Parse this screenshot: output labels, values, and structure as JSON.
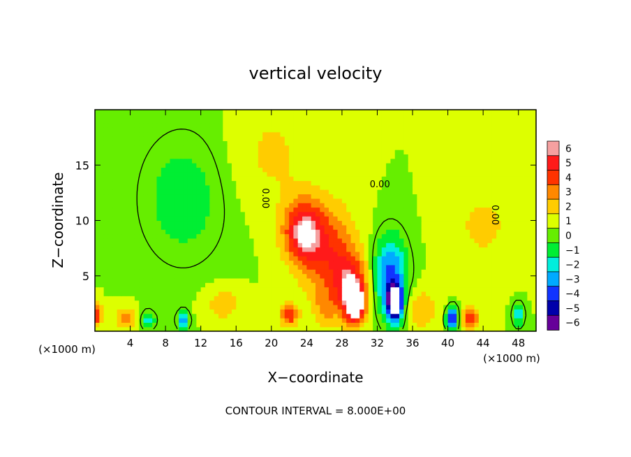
{
  "chart_data": {
    "type": "heatmap",
    "title": "vertical velocity",
    "xlabel": "X−coordinate",
    "ylabel": "Z−coordinate",
    "x_unit_left": "(×1000 m)",
    "x_unit_right": "(×1000 m)",
    "xlim": [
      0,
      50
    ],
    "ylim": [
      0,
      20
    ],
    "xticks": [
      4,
      8,
      12,
      16,
      20,
      24,
      28,
      32,
      36,
      40,
      44,
      48
    ],
    "yticks": [
      5,
      10,
      15
    ],
    "footer": "CONTOUR INTERVAL = 8.000E+00",
    "contour_labels": [
      "0.00",
      "0.00",
      "0.00"
    ],
    "colorbar": {
      "levels": [
        6,
        5,
        4,
        3,
        2,
        1,
        0,
        -1,
        -2,
        -3,
        -4,
        -5,
        -6
      ],
      "tick_labels": [
        "6",
        "5",
        "4",
        "3",
        "2",
        "1",
        "0",
        "−1",
        "−2",
        "−3",
        "−4",
        "−5",
        "−6"
      ],
      "colors": [
        "#f5a0a0",
        "#ff1a1a",
        "#ff3300",
        "#ff8800",
        "#ffcc00",
        "#ddff00",
        "#66ee00",
        "#00ee33",
        "#00eedd",
        "#00aaff",
        "#1133ff",
        "#0000aa",
        "#660099"
      ]
    },
    "background_value": 0.5,
    "features": [
      {
        "x": 23.5,
        "z": 9.0,
        "w": 2.2,
        "sz": 2.8,
        "value": 5.0
      },
      {
        "x": 26.5,
        "z": 7.0,
        "w": 3.0,
        "sz": 4.5,
        "value": 3.5
      },
      {
        "x": 29.0,
        "z": 4.0,
        "w": 1.8,
        "sz": 2.8,
        "value": 4.5
      },
      {
        "x": 29.5,
        "z": 2.5,
        "w": 1.0,
        "sz": 1.5,
        "value": 7.0
      },
      {
        "x": 33.5,
        "z": 5.0,
        "w": 1.8,
        "sz": 3.5,
        "value": -4.5
      },
      {
        "x": 34.0,
        "z": 2.5,
        "w": 0.9,
        "sz": 1.6,
        "value": -7.0
      },
      {
        "x": 10.0,
        "z": 12.0,
        "w": 5.0,
        "sz": 6.0,
        "value": -1.5
      },
      {
        "x": 22.0,
        "z": 1.5,
        "w": 1.0,
        "sz": 1.0,
        "value": 4.0
      },
      {
        "x": 40.5,
        "z": 1.2,
        "w": 0.7,
        "sz": 1.0,
        "value": -5.5
      },
      {
        "x": 42.5,
        "z": 1.2,
        "w": 1.0,
        "sz": 1.0,
        "value": 4.0
      },
      {
        "x": 10.0,
        "z": 1.0,
        "w": 0.6,
        "sz": 0.8,
        "value": -4.0
      },
      {
        "x": 0.3,
        "z": 1.5,
        "w": 0.5,
        "sz": 1.0,
        "value": 4.0
      },
      {
        "x": 37.0,
        "z": 2.0,
        "w": 2.0,
        "sz": 1.8,
        "value": 2.0
      },
      {
        "x": 3.5,
        "z": 1.2,
        "w": 1.2,
        "sz": 1.0,
        "value": 2.5
      },
      {
        "x": 6.0,
        "z": 1.0,
        "w": 0.8,
        "sz": 0.8,
        "value": -2.5
      },
      {
        "x": 44.0,
        "z": 9.5,
        "w": 3.5,
        "sz": 3.5,
        "value": 1.3
      },
      {
        "x": 20.0,
        "z": 16.0,
        "w": 4.5,
        "sz": 5.0,
        "value": 1.2
      },
      {
        "x": 48.0,
        "z": 1.5,
        "w": 0.6,
        "sz": 1.0,
        "value": -3.0
      },
      {
        "x": 14.5,
        "z": 2.5,
        "w": 2.0,
        "sz": 1.5,
        "value": 1.8
      },
      {
        "x": 26.0,
        "z": 2.0,
        "w": 1.2,
        "sz": 1.5,
        "value": 1.5
      }
    ]
  }
}
